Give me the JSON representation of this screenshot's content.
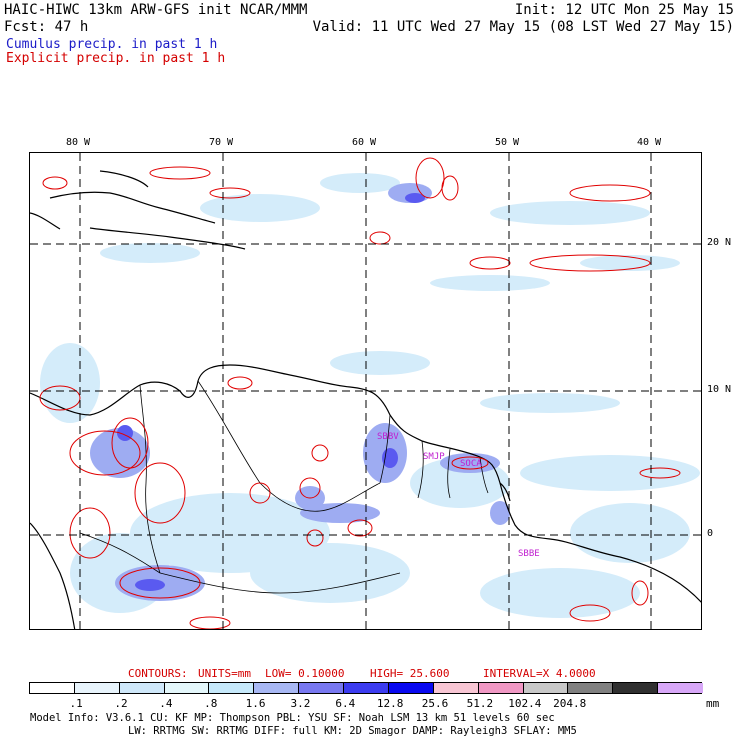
{
  "header": {
    "line1_left": "HAIC-HIWC 13km ARW-GFS init   NCAR/MMM",
    "line1_right": "Init: 12 UTC Mon 25 May 15",
    "line2_left": "Fcst:   47 h",
    "line2_right": "Valid: 11 UTC Wed 27 May 15 (08 LST Wed 27 May 15)",
    "legend_cumulus": "Cumulus precip. in past 1 h",
    "legend_explicit": "Explicit precip. in past 1 h"
  },
  "map": {
    "lon_labels": [
      "80 W",
      "70 W",
      "60 W",
      "50 W",
      "40 W"
    ],
    "lat_labels": [
      "20 N",
      "10 N",
      "0"
    ],
    "stations": [
      "SBBV",
      "SMJP",
      "SOCA",
      "SBBE"
    ]
  },
  "contours": {
    "label": "CONTOURS:",
    "units": "UNITS=mm",
    "low": "LOW= 0.10000",
    "high": "HIGH=  25.600",
    "interval": "INTERVAL=X  4.0000"
  },
  "colorbar": {
    "unit": "mm",
    "labels": [
      ".1",
      ".2",
      ".4",
      ".8",
      "1.6",
      "3.2",
      "6.4",
      "12.8",
      "25.6",
      "51.2",
      "102.4",
      "204.8"
    ],
    "colors": [
      "#ffffff",
      "#e8f4fc",
      "#cfe8fa",
      "#e4f7fb",
      "#c6e9fb",
      "#a8b8f4",
      "#7878f0",
      "#3c3cf0",
      "#0808f0",
      "#f8c6d4",
      "#f098c4",
      "#c8c8c8",
      "#808080",
      "#303030",
      "#d8a8f8"
    ]
  },
  "footer": {
    "line1": "Model Info: V3.6.1    CU: KF     MP: Thompson     PBL: YSU      SF: Noah LSM     13 km    51 levels   60 sec",
    "line2": "LW: RRTMG   SW: RRTMG  DIFF: full   KM: 2D Smagor DAMP: Rayleigh3  SFLAY: MM5"
  }
}
